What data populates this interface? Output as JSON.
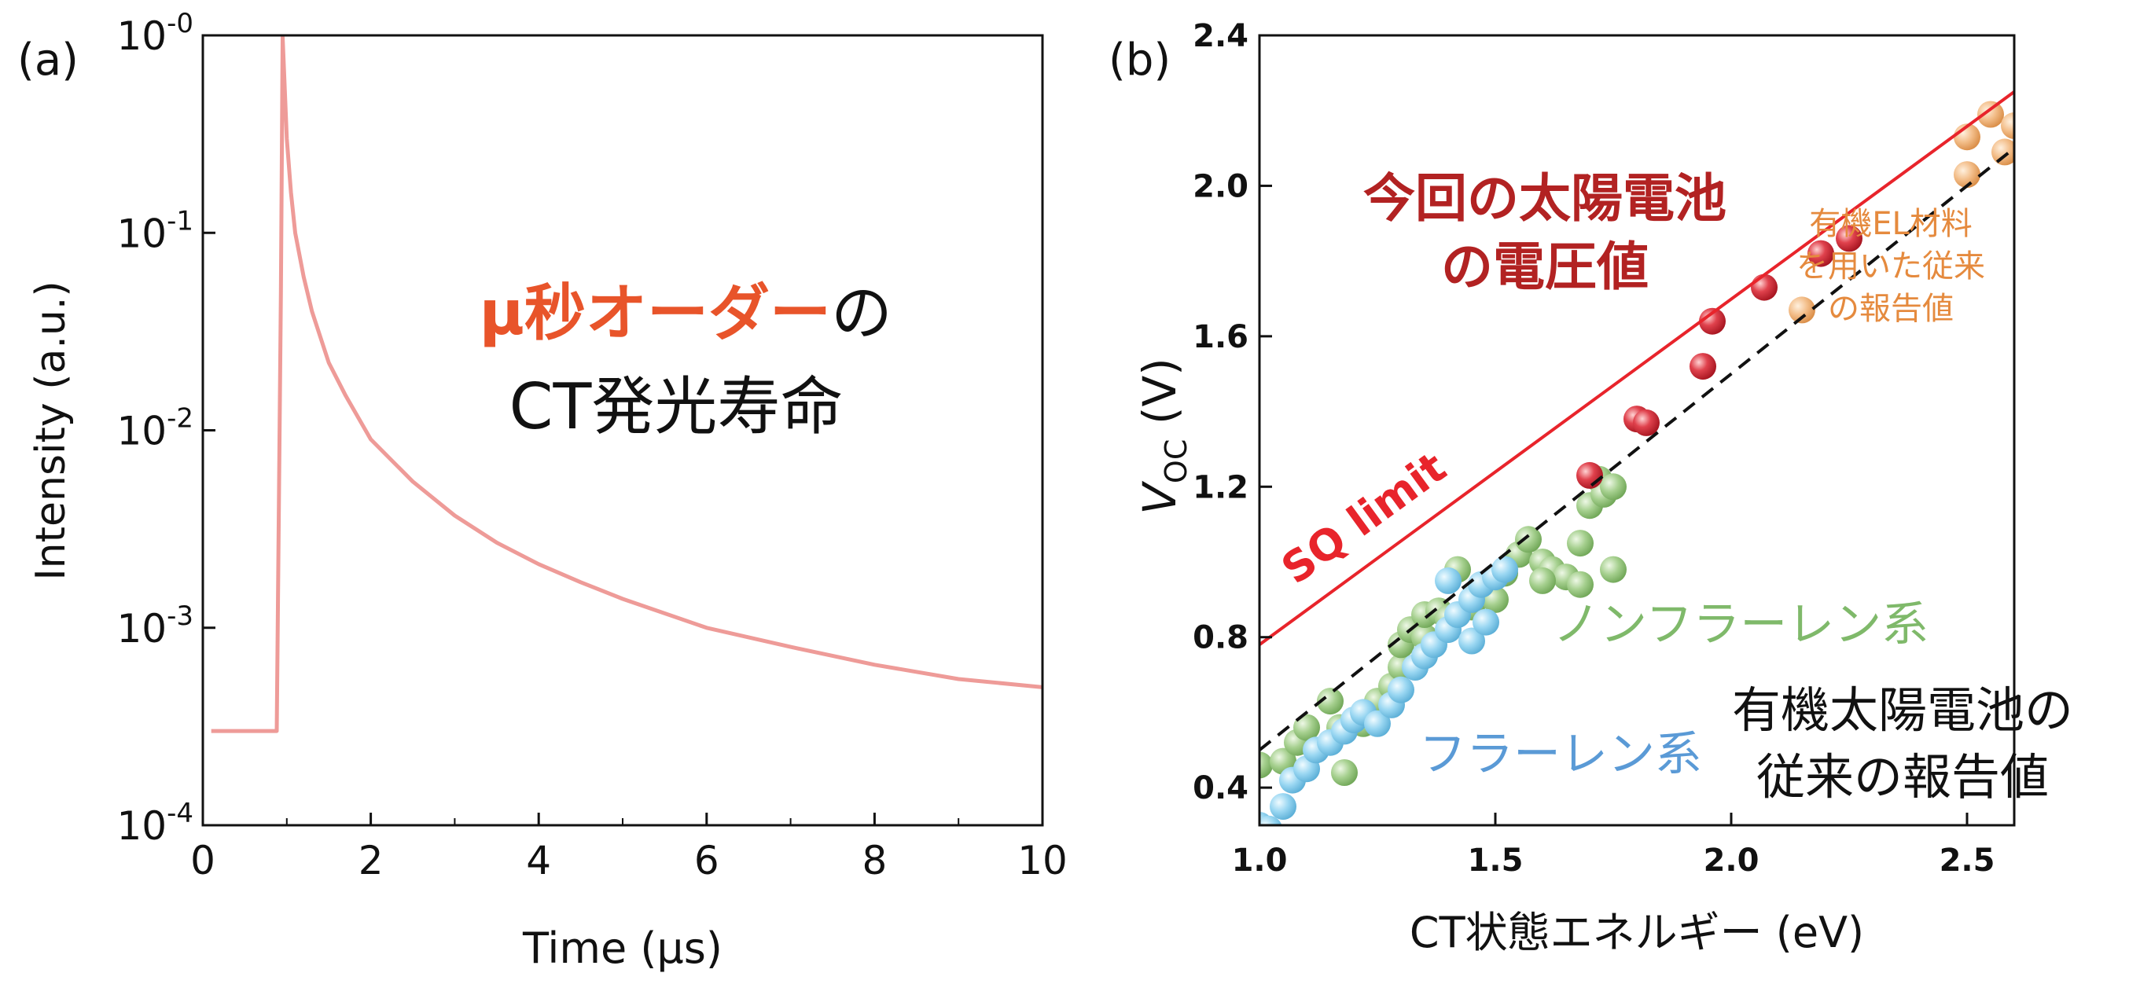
{
  "chart_data": [
    {
      "panel_label": "(a)",
      "type": "line",
      "xlabel": "Time (μs)",
      "ylabel": "Intensity (a.u.)",
      "xlim": [
        0,
        10
      ],
      "ylim": [
        0.0001,
        1
      ],
      "yscale": "log",
      "x_ticks": [
        "0",
        "2",
        "4",
        "6",
        "8",
        "10"
      ],
      "y_ticks": [
        {
          "base": "10",
          "exp": "-0"
        },
        {
          "base": "10",
          "exp": "-1"
        },
        {
          "base": "10",
          "exp": "-2"
        },
        {
          "base": "10",
          "exp": "-3"
        },
        {
          "base": "10",
          "exp": "-4"
        }
      ],
      "grid": false,
      "color": "#ee9b98",
      "series": [
        {
          "x": [
            0.1,
            0.3,
            0.5,
            0.7,
            0.88,
            0.93,
            0.95,
            1.0,
            1.05,
            1.1,
            1.2,
            1.3,
            1.5,
            1.7,
            2.0,
            2.5,
            3.0,
            3.5,
            4.0,
            4.5,
            5.0,
            6.0,
            7.0,
            8.0,
            9.0,
            10.0
          ],
          "y": [
            0.0003,
            0.0003,
            0.0003,
            0.0003,
            0.0003,
            0.05,
            0.98,
            0.3,
            0.16,
            0.1,
            0.06,
            0.04,
            0.022,
            0.015,
            0.009,
            0.0055,
            0.0037,
            0.0027,
            0.0021,
            0.0017,
            0.0014,
            0.001,
            0.0008,
            0.00065,
            0.00055,
            0.0005
          ]
        }
      ],
      "annotation": {
        "highlight": "μ秒オーダー",
        "rest": "の",
        "line2": "CT発光寿命",
        "highlight_color": "#e8542a"
      }
    },
    {
      "panel_label": "(b)",
      "type": "scatter",
      "xlabel": "CT状態エネルギー (eV)",
      "ylabel_main": "V",
      "ylabel_sub": "OC",
      "ylabel_unit": " (V)",
      "xlim": [
        1.0,
        2.6
      ],
      "ylim": [
        0.3,
        2.4
      ],
      "x_ticks": [
        "1.0",
        "1.5",
        "2.0",
        "2.5"
      ],
      "y_ticks": [
        "0.4",
        "0.8",
        "1.2",
        "1.6",
        "2.0",
        "2.4"
      ],
      "lines": [
        {
          "name": "SQ limit",
          "x": [
            1.0,
            2.6
          ],
          "y": [
            0.78,
            2.25
          ],
          "color": "#e8242b",
          "style": "solid"
        },
        {
          "name": "",
          "x": [
            1.0,
            2.6
          ],
          "y": [
            0.5,
            2.1
          ],
          "color": "#111111",
          "style": "dashed"
        }
      ],
      "groups": [
        {
          "name": "今回の太陽電池の電圧値",
          "color": "#c8202e",
          "points": [
            [
              1.7,
              1.23
            ],
            [
              1.8,
              1.38
            ],
            [
              1.82,
              1.37
            ],
            [
              1.94,
              1.52
            ],
            [
              1.96,
              1.64
            ],
            [
              2.07,
              1.73
            ],
            [
              2.19,
              1.82
            ],
            [
              2.25,
              1.86
            ]
          ]
        },
        {
          "name": "有機EL材料を用いた従来の報告値",
          "color": "#f0b27a",
          "points": [
            [
              2.15,
              1.67
            ],
            [
              2.5,
              2.03
            ],
            [
              2.5,
              2.13
            ],
            [
              2.55,
              2.19
            ],
            [
              2.58,
              2.09
            ],
            [
              2.6,
              2.16
            ]
          ]
        },
        {
          "name": "フラーレン系",
          "color": "#8fcfee",
          "points": [
            [
              1.0,
              0.3
            ],
            [
              1.02,
              0.29
            ],
            [
              1.05,
              0.35
            ],
            [
              1.07,
              0.42
            ],
            [
              1.1,
              0.45
            ],
            [
              1.12,
              0.5
            ],
            [
              1.15,
              0.52
            ],
            [
              1.18,
              0.55
            ],
            [
              1.2,
              0.58
            ],
            [
              1.22,
              0.6
            ],
            [
              1.25,
              0.57
            ],
            [
              1.28,
              0.62
            ],
            [
              1.3,
              0.66
            ],
            [
              1.33,
              0.72
            ],
            [
              1.35,
              0.75
            ],
            [
              1.37,
              0.78
            ],
            [
              1.4,
              0.82
            ],
            [
              1.42,
              0.86
            ],
            [
              1.45,
              0.9
            ],
            [
              1.47,
              0.94
            ],
            [
              1.5,
              0.96
            ],
            [
              1.52,
              0.98
            ],
            [
              1.4,
              0.95
            ],
            [
              1.45,
              0.79
            ],
            [
              1.48,
              0.84
            ]
          ]
        },
        {
          "name": "ノンフラーレン系",
          "color": "#9fcb8a",
          "points": [
            [
              1.0,
              0.46
            ],
            [
              1.05,
              0.47
            ],
            [
              1.08,
              0.52
            ],
            [
              1.1,
              0.56
            ],
            [
              1.15,
              0.63
            ],
            [
              1.17,
              0.56
            ],
            [
              1.18,
              0.44
            ],
            [
              1.22,
              0.57
            ],
            [
              1.25,
              0.63
            ],
            [
              1.28,
              0.67
            ],
            [
              1.3,
              0.72
            ],
            [
              1.3,
              0.78
            ],
            [
              1.32,
              0.82
            ],
            [
              1.35,
              0.8
            ],
            [
              1.35,
              0.86
            ],
            [
              1.38,
              0.87
            ],
            [
              1.4,
              0.85
            ],
            [
              1.42,
              0.98
            ],
            [
              1.45,
              0.88
            ],
            [
              1.47,
              0.93
            ],
            [
              1.5,
              0.9
            ],
            [
              1.52,
              0.97
            ],
            [
              1.55,
              1.02
            ],
            [
              1.57,
              1.06
            ],
            [
              1.6,
              1.0
            ],
            [
              1.62,
              0.98
            ],
            [
              1.65,
              0.96
            ],
            [
              1.68,
              1.05
            ],
            [
              1.7,
              1.15
            ],
            [
              1.72,
              1.22
            ],
            [
              1.73,
              1.18
            ],
            [
              1.75,
              1.2
            ],
            [
              1.75,
              0.98
            ],
            [
              1.68,
              0.94
            ],
            [
              1.6,
              0.95
            ]
          ]
        }
      ],
      "annotations": [
        {
          "text": "SQ limit",
          "color": "#e8242b"
        },
        {
          "line1": "今回の太陽電池",
          "line2": "の電圧値",
          "color": "#b22222"
        },
        {
          "line1": "有機EL材料",
          "line2": "を用いた従来",
          "line3": "の報告値",
          "color": "#e58a3e"
        },
        {
          "text": "ノンフラーレン系",
          "color": "#7fb96a"
        },
        {
          "text": "フラーレン系",
          "color": "#5a9ad6"
        },
        {
          "line1": "有機太陽電池の",
          "line2": "従来の報告値",
          "color": "#111111"
        }
      ]
    }
  ]
}
